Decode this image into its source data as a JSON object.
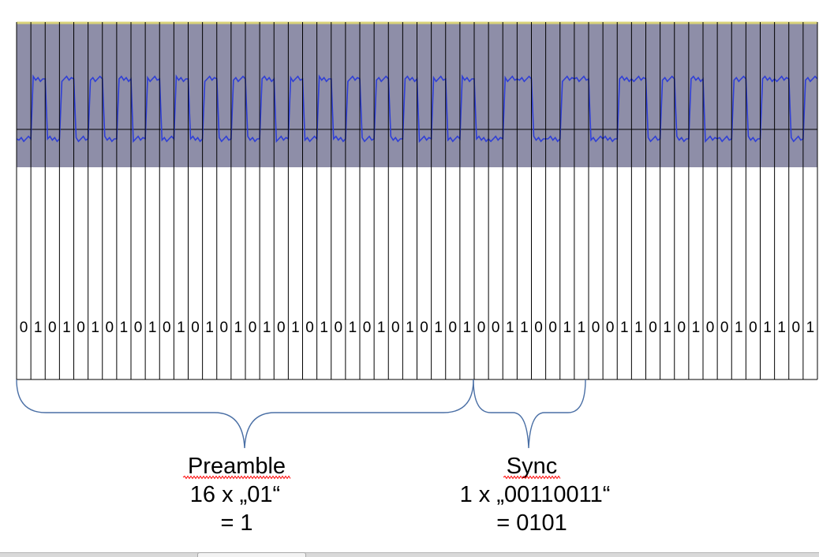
{
  "signal": {
    "band_color": "#8e8ea8",
    "trace_color": "#2f3fd6",
    "top_line_color": "#d8d27a",
    "grid_color": "#000000"
  },
  "bits": "01010101010101010101010101010101001100110011010100101101",
  "preamble": {
    "title": "Preamble",
    "line1": "16 x „01“",
    "line2": "= 1"
  },
  "sync": {
    "title": "Sync",
    "line1": "1 x „00110011“",
    "line2": "= 0101"
  },
  "brace_color": "#4a6fa5",
  "spell_underline_color": "#ff0000"
}
